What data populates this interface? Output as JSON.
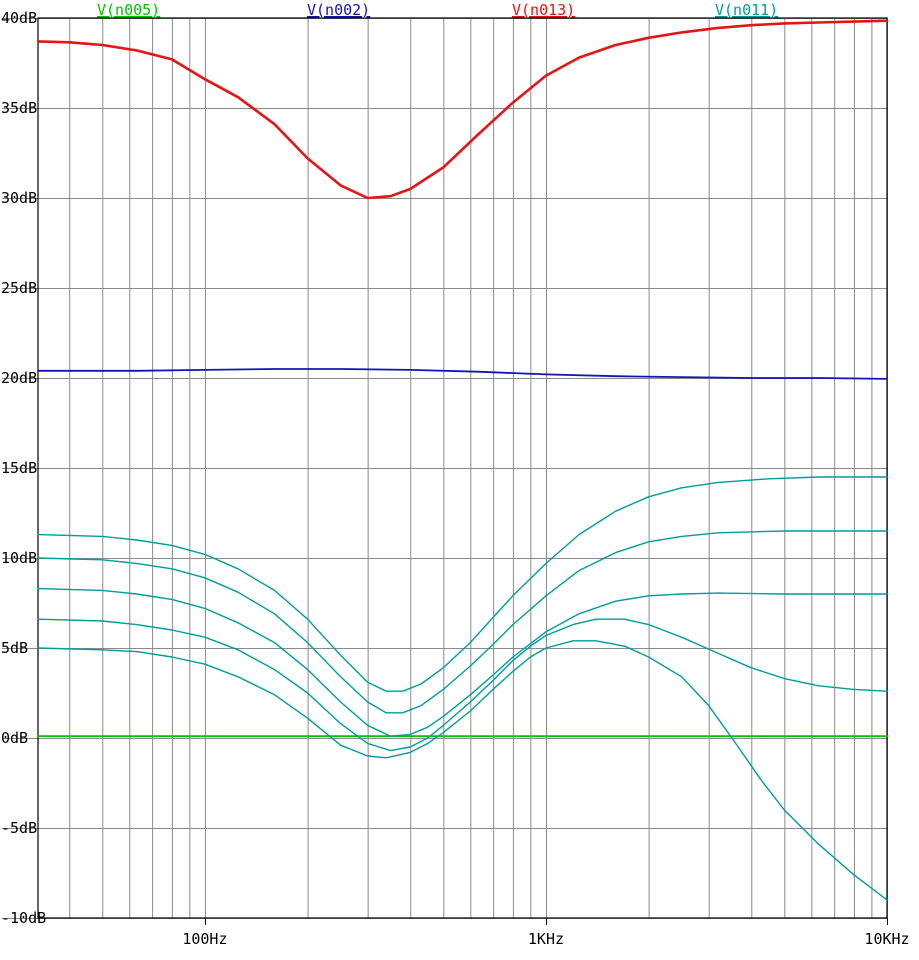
{
  "chart_data": {
    "type": "line",
    "title": "",
    "xlabel": "",
    "ylabel": "",
    "x_scale": "log",
    "xlim": [
      32.4,
      10000
    ],
    "ylim": [
      -10,
      40
    ],
    "grid": true,
    "legend_position": "top",
    "background_color": "#ffffff",
    "grid_color": "#8a8a8a",
    "border_color": "#000000",
    "text_color": "#000000",
    "x_ticks": [
      {
        "value": 100,
        "label": "100Hz"
      },
      {
        "value": 1000,
        "label": "1KHz"
      },
      {
        "value": 10000,
        "label": "10KHz"
      }
    ],
    "x_minor_gridlines": [
      40,
      50,
      60,
      70,
      80,
      90,
      200,
      300,
      400,
      500,
      600,
      700,
      800,
      900,
      2000,
      3000,
      4000,
      5000,
      6000,
      7000,
      8000,
      9000
    ],
    "y_ticks": [
      {
        "value": 40,
        "label": "40dB"
      },
      {
        "value": 35,
        "label": "35dB"
      },
      {
        "value": 30,
        "label": "30dB"
      },
      {
        "value": 25,
        "label": "25dB"
      },
      {
        "value": 20,
        "label": "20dB"
      },
      {
        "value": 15,
        "label": "15dB"
      },
      {
        "value": 10,
        "label": "10dB"
      },
      {
        "value": 5,
        "label": "5dB"
      },
      {
        "value": 0,
        "label": "0dB"
      },
      {
        "value": -5,
        "label": "-5dB"
      },
      {
        "value": -10,
        "label": "-10dB"
      }
    ],
    "series": [
      {
        "name": "V(n005)",
        "color": "#00c400",
        "width": 1.8,
        "curves": [
          [
            [
              32.4,
              0.1
            ],
            [
              100,
              0.1
            ],
            [
              1000,
              0.1
            ],
            [
              10000,
              0.1
            ]
          ]
        ]
      },
      {
        "name": "V(n002)",
        "color": "#1414b4",
        "width": 1.8,
        "curves": [
          [
            [
              32.4,
              20.4
            ],
            [
              63,
              20.4
            ],
            [
              100,
              20.45
            ],
            [
              160,
              20.5
            ],
            [
              250,
              20.5
            ],
            [
              400,
              20.45
            ],
            [
              630,
              20.35
            ],
            [
              1000,
              20.2
            ],
            [
              1600,
              20.1
            ],
            [
              2500,
              20.05
            ],
            [
              4000,
              20.0
            ],
            [
              6300,
              20.0
            ],
            [
              10000,
              19.95
            ]
          ]
        ]
      },
      {
        "name": "V(n013)",
        "color": "#e61414",
        "width": 2.6,
        "curves": [
          [
            [
              32.4,
              38.7
            ],
            [
              40,
              38.65
            ],
            [
              50,
              38.5
            ],
            [
              63,
              38.2
            ],
            [
              80,
              37.7
            ],
            [
              100,
              36.6
            ],
            [
              125,
              35.6
            ],
            [
              160,
              34.1
            ],
            [
              200,
              32.2
            ],
            [
              250,
              30.7
            ],
            [
              300,
              30.0
            ],
            [
              350,
              30.1
            ],
            [
              400,
              30.5
            ],
            [
              500,
              31.7
            ],
            [
              630,
              33.5
            ],
            [
              800,
              35.3
            ],
            [
              1000,
              36.8
            ],
            [
              1250,
              37.8
            ],
            [
              1600,
              38.5
            ],
            [
              2000,
              38.9
            ],
            [
              2500,
              39.2
            ],
            [
              3200,
              39.45
            ],
            [
              4000,
              39.6
            ],
            [
              5000,
              39.7
            ],
            [
              6300,
              39.75
            ],
            [
              8000,
              39.8
            ],
            [
              10000,
              39.85
            ]
          ]
        ]
      },
      {
        "name": "V(n011)",
        "color": "#009c9c",
        "width": 1.4,
        "curves": [
          [
            [
              32.4,
              11.3
            ],
            [
              50,
              11.2
            ],
            [
              63,
              11.0
            ],
            [
              80,
              10.7
            ],
            [
              100,
              10.2
            ],
            [
              125,
              9.4
            ],
            [
              160,
              8.2
            ],
            [
              200,
              6.6
            ],
            [
              250,
              4.6
            ],
            [
              300,
              3.1
            ],
            [
              340,
              2.6
            ],
            [
              380,
              2.6
            ],
            [
              430,
              3.0
            ],
            [
              500,
              3.9
            ],
            [
              600,
              5.3
            ],
            [
              700,
              6.7
            ],
            [
              800,
              7.9
            ],
            [
              1000,
              9.7
            ],
            [
              1250,
              11.3
            ],
            [
              1600,
              12.6
            ],
            [
              2000,
              13.4
            ],
            [
              2500,
              13.9
            ],
            [
              3200,
              14.2
            ],
            [
              4500,
              14.4
            ],
            [
              6300,
              14.5
            ],
            [
              10000,
              14.5
            ]
          ],
          [
            [
              32.4,
              10.0
            ],
            [
              50,
              9.9
            ],
            [
              63,
              9.7
            ],
            [
              80,
              9.4
            ],
            [
              100,
              8.9
            ],
            [
              125,
              8.1
            ],
            [
              160,
              6.9
            ],
            [
              200,
              5.3
            ],
            [
              250,
              3.4
            ],
            [
              300,
              2.0
            ],
            [
              340,
              1.4
            ],
            [
              380,
              1.4
            ],
            [
              430,
              1.8
            ],
            [
              500,
              2.7
            ],
            [
              600,
              4.0
            ],
            [
              700,
              5.2
            ],
            [
              800,
              6.3
            ],
            [
              1000,
              7.9
            ],
            [
              1250,
              9.3
            ],
            [
              1600,
              10.3
            ],
            [
              2000,
              10.9
            ],
            [
              2500,
              11.2
            ],
            [
              3200,
              11.4
            ],
            [
              5000,
              11.5
            ],
            [
              10000,
              11.5
            ]
          ],
          [
            [
              32.4,
              8.3
            ],
            [
              50,
              8.2
            ],
            [
              63,
              8.0
            ],
            [
              80,
              7.7
            ],
            [
              100,
              7.2
            ],
            [
              125,
              6.4
            ],
            [
              160,
              5.3
            ],
            [
              200,
              3.8
            ],
            [
              250,
              2.0
            ],
            [
              300,
              0.7
            ],
            [
              350,
              0.1
            ],
            [
              400,
              0.2
            ],
            [
              450,
              0.6
            ],
            [
              500,
              1.2
            ],
            [
              600,
              2.4
            ],
            [
              700,
              3.5
            ],
            [
              800,
              4.5
            ],
            [
              1000,
              5.9
            ],
            [
              1250,
              6.9
            ],
            [
              1600,
              7.6
            ],
            [
              2000,
              7.9
            ],
            [
              2500,
              8.0
            ],
            [
              3200,
              8.05
            ],
            [
              5000,
              8.0
            ],
            [
              10000,
              8.0
            ]
          ],
          [
            [
              32.4,
              6.6
            ],
            [
              50,
              6.5
            ],
            [
              63,
              6.3
            ],
            [
              80,
              6.0
            ],
            [
              100,
              5.6
            ],
            [
              125,
              4.9
            ],
            [
              160,
              3.8
            ],
            [
              200,
              2.5
            ],
            [
              250,
              0.8
            ],
            [
              300,
              -0.3
            ],
            [
              350,
              -0.7
            ],
            [
              400,
              -0.5
            ],
            [
              450,
              0.0
            ],
            [
              500,
              0.7
            ],
            [
              600,
              2.0
            ],
            [
              700,
              3.2
            ],
            [
              800,
              4.3
            ],
            [
              900,
              5.1
            ],
            [
              1000,
              5.7
            ],
            [
              1200,
              6.3
            ],
            [
              1400,
              6.6
            ],
            [
              1700,
              6.6
            ],
            [
              2000,
              6.3
            ],
            [
              2500,
              5.6
            ],
            [
              3200,
              4.7
            ],
            [
              4000,
              3.9
            ],
            [
              5000,
              3.3
            ],
            [
              6300,
              2.9
            ],
            [
              8000,
              2.7
            ],
            [
              10000,
              2.6
            ]
          ],
          [
            [
              32.4,
              5.0
            ],
            [
              50,
              4.9
            ],
            [
              63,
              4.8
            ],
            [
              80,
              4.5
            ],
            [
              100,
              4.1
            ],
            [
              125,
              3.4
            ],
            [
              160,
              2.4
            ],
            [
              200,
              1.1
            ],
            [
              250,
              -0.4
            ],
            [
              300,
              -1.0
            ],
            [
              340,
              -1.1
            ],
            [
              400,
              -0.8
            ],
            [
              450,
              -0.3
            ],
            [
              500,
              0.3
            ],
            [
              600,
              1.5
            ],
            [
              700,
              2.7
            ],
            [
              800,
              3.7
            ],
            [
              900,
              4.5
            ],
            [
              1000,
              5.0
            ],
            [
              1200,
              5.4
            ],
            [
              1400,
              5.4
            ],
            [
              1700,
              5.1
            ],
            [
              2000,
              4.5
            ],
            [
              2500,
              3.4
            ],
            [
              3000,
              1.8
            ],
            [
              3600,
              -0.3
            ],
            [
              4300,
              -2.4
            ],
            [
              5000,
              -4.0
            ],
            [
              6300,
              -5.9
            ],
            [
              8000,
              -7.6
            ],
            [
              10000,
              -9.0
            ]
          ]
        ]
      }
    ],
    "legend": [
      {
        "label": "V(n005)",
        "color": "#00c400"
      },
      {
        "label": "V(n002)",
        "color": "#1414b4"
      },
      {
        "label": "V(n013)",
        "color": "#e61414"
      },
      {
        "label": "V(n011)",
        "color": "#009c9c"
      }
    ]
  }
}
